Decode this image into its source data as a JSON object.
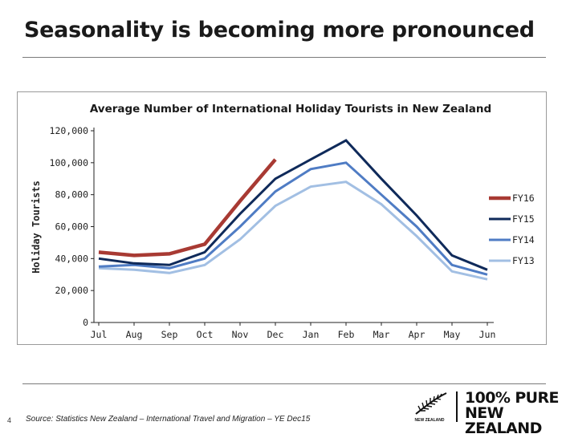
{
  "slide": {
    "title": "Seasonality is becoming more pronounced",
    "page_number": "4",
    "source": "Source: Statistics New Zealand – International Travel and Migration – YE Dec15",
    "logo_text": "NEW ZEALAND",
    "brand_line1": "100% PURE",
    "brand_line2": "NEW ZEALAND"
  },
  "chart_data": {
    "type": "line",
    "title": "Average Number of International Holiday Tourists in New Zealand",
    "xlabel": "",
    "ylabel": "Holiday Tourists",
    "categories": [
      "Jul",
      "Aug",
      "Sep",
      "Oct",
      "Nov",
      "Dec",
      "Jan",
      "Feb",
      "Mar",
      "Apr",
      "May",
      "Jun"
    ],
    "ylim": [
      0,
      120000
    ],
    "yticks": [
      0,
      20000,
      40000,
      60000,
      80000,
      100000,
      120000
    ],
    "ytick_labels": [
      "0",
      "20,000",
      "40,000",
      "60,000",
      "80,000",
      "100,000",
      "120,000"
    ],
    "legend_position": "right",
    "series": [
      {
        "name": "FY16",
        "color": "#a83a33",
        "values": [
          44000,
          42000,
          43000,
          49000,
          76000,
          102000,
          null,
          null,
          null,
          null,
          null,
          null
        ]
      },
      {
        "name": "FY15",
        "color": "#0f2a5a",
        "values": [
          40000,
          37000,
          36000,
          44000,
          68000,
          90000,
          102000,
          114000,
          90000,
          67000,
          42000,
          33000
        ]
      },
      {
        "name": "FY14",
        "color": "#4f7cc4",
        "values": [
          35000,
          36000,
          34000,
          40000,
          60000,
          82000,
          96000,
          100000,
          80000,
          60000,
          36000,
          30000
        ]
      },
      {
        "name": "FY13",
        "color": "#a2bfe3",
        "values": [
          34000,
          33000,
          31000,
          36000,
          52000,
          73000,
          85000,
          88000,
          74000,
          54000,
          32000,
          27000
        ]
      }
    ]
  }
}
